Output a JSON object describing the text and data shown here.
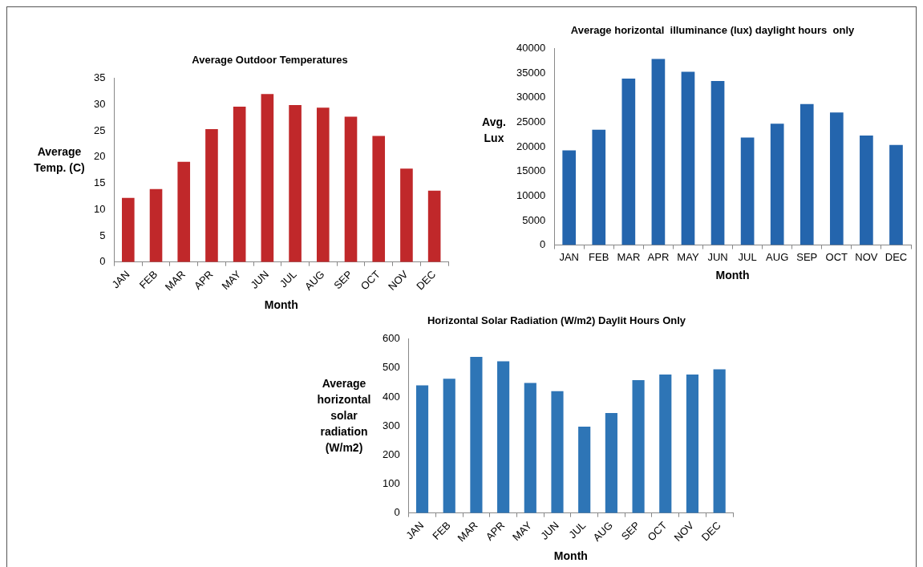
{
  "chart_data": [
    {
      "type": "bar",
      "title": "Average Outdoor Temperatures",
      "xlabel": "Month",
      "ylabel": "Average Temp. (C)",
      "categories": [
        "JAN",
        "FEB",
        "MAR",
        "APR",
        "MAY",
        "JUN",
        "JUL",
        "AUG",
        "SEP",
        "OCT",
        "NOV",
        "DEC"
      ],
      "values": [
        12.2,
        13.9,
        19.1,
        25.3,
        29.6,
        32,
        29.9,
        29.4,
        27.7,
        24,
        17.8,
        13.6
      ],
      "color": "#c0282a",
      "ylim": [
        0,
        35
      ],
      "yticks": [
        0,
        5,
        10,
        15,
        20,
        25,
        30,
        35
      ]
    },
    {
      "type": "bar",
      "title": "Average horizontal  illuminance (lux) daylight hours  only",
      "xlabel": "Month",
      "ylabel": "Avg. Lux",
      "categories": [
        "JAN",
        "FEB",
        "MAR",
        "APR",
        "MAY",
        "JUN",
        "JUL",
        "AUG",
        "SEP",
        "OCT",
        "NOV",
        "DEC"
      ],
      "values": [
        19300,
        23500,
        33900,
        37900,
        35300,
        33400,
        21900,
        24700,
        28700,
        27000,
        22300,
        20400
      ],
      "color": "#2465ad",
      "ylim": [
        0,
        40000
      ],
      "yticks": [
        0,
        5000,
        10000,
        15000,
        20000,
        25000,
        30000,
        35000,
        40000
      ]
    },
    {
      "type": "bar",
      "title": "Horizontal Solar Radiation (W/m2) Daylit Hours Only",
      "xlabel": "Month",
      "ylabel": "Average horizontal solar radiation (W/m2)",
      "categories": [
        "JAN",
        "FEB",
        "MAR",
        "APR",
        "MAY",
        "JUN",
        "JUL",
        "AUG",
        "SEP",
        "OCT",
        "NOV",
        "DEC"
      ],
      "values": [
        440,
        463,
        538,
        523,
        448,
        420,
        298,
        345,
        458,
        477,
        477,
        495
      ],
      "color": "#2e75b6",
      "ylim": [
        0,
        600
      ],
      "yticks": [
        0,
        100,
        200,
        300,
        400,
        500,
        600
      ]
    }
  ]
}
